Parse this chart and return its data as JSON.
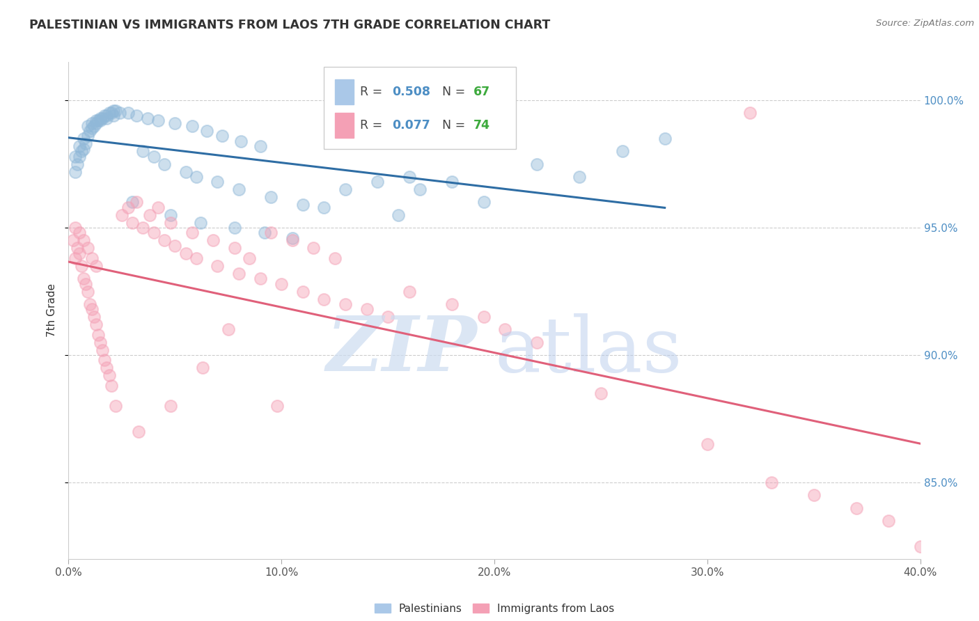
{
  "title": "PALESTINIAN VS IMMIGRANTS FROM LAOS 7TH GRADE CORRELATION CHART",
  "source": "Source: ZipAtlas.com",
  "ylabel": "7th Grade",
  "xlim": [
    0.0,
    40.0
  ],
  "ylim": [
    82.0,
    101.5
  ],
  "blue_R": 0.508,
  "blue_N": 67,
  "pink_R": 0.077,
  "pink_N": 74,
  "blue_color": "#90b8d8",
  "blue_line_color": "#2e6da4",
  "pink_color": "#f4a0b5",
  "pink_line_color": "#e0607a",
  "legend_R_color": "#4d8ec4",
  "legend_N_color": "#3daa3d",
  "watermark_color_zip": "#d0dff0",
  "watermark_color_atlas": "#b8ccec",
  "background_color": "#ffffff",
  "blue_scatter_x": [
    0.3,
    0.5,
    0.7,
    0.9,
    1.1,
    1.3,
    1.5,
    1.7,
    1.9,
    2.1,
    0.4,
    0.6,
    0.8,
    1.0,
    1.2,
    1.4,
    1.6,
    1.8,
    2.0,
    2.2,
    0.3,
    0.5,
    0.7,
    0.9,
    1.1,
    1.3,
    1.5,
    1.8,
    2.1,
    2.4,
    2.8,
    3.2,
    3.7,
    4.2,
    5.0,
    5.8,
    6.5,
    7.2,
    8.1,
    9.0,
    3.5,
    4.0,
    4.5,
    5.5,
    6.0,
    7.0,
    8.0,
    9.5,
    11.0,
    13.0,
    14.5,
    16.0,
    3.0,
    4.8,
    6.2,
    7.8,
    9.2,
    10.5,
    12.0,
    16.5,
    18.0,
    22.0,
    26.0,
    28.0,
    15.5,
    19.5,
    24.0
  ],
  "blue_scatter_y": [
    97.8,
    98.2,
    98.5,
    99.0,
    99.1,
    99.2,
    99.3,
    99.4,
    99.5,
    99.6,
    97.5,
    98.0,
    98.3,
    98.8,
    99.0,
    99.2,
    99.3,
    99.4,
    99.5,
    99.6,
    97.2,
    97.8,
    98.1,
    98.6,
    98.9,
    99.1,
    99.2,
    99.3,
    99.4,
    99.5,
    99.5,
    99.4,
    99.3,
    99.2,
    99.1,
    99.0,
    98.8,
    98.6,
    98.4,
    98.2,
    98.0,
    97.8,
    97.5,
    97.2,
    97.0,
    96.8,
    96.5,
    96.2,
    95.9,
    96.5,
    96.8,
    97.0,
    96.0,
    95.5,
    95.2,
    95.0,
    94.8,
    94.6,
    95.8,
    96.5,
    96.8,
    97.5,
    98.0,
    98.5,
    95.5,
    96.0,
    97.0
  ],
  "pink_scatter_x": [
    0.2,
    0.3,
    0.4,
    0.5,
    0.6,
    0.7,
    0.8,
    0.9,
    1.0,
    1.1,
    1.2,
    1.3,
    1.4,
    1.5,
    1.6,
    1.7,
    1.8,
    1.9,
    2.0,
    2.2,
    0.3,
    0.5,
    0.7,
    0.9,
    1.1,
    1.3,
    2.5,
    3.0,
    3.5,
    4.0,
    4.5,
    5.0,
    5.5,
    6.0,
    7.0,
    8.0,
    9.0,
    10.0,
    11.0,
    12.0,
    13.0,
    14.0,
    15.0,
    2.8,
    3.8,
    4.8,
    5.8,
    6.8,
    7.8,
    8.5,
    3.2,
    4.2,
    9.5,
    10.5,
    11.5,
    12.5,
    16.0,
    18.0,
    19.5,
    20.5,
    22.0,
    25.0,
    30.0,
    33.0,
    35.0,
    37.0,
    38.5,
    40.0,
    3.3,
    4.8,
    6.3,
    7.5,
    9.8,
    32.0
  ],
  "pink_scatter_y": [
    94.5,
    93.8,
    94.2,
    94.0,
    93.5,
    93.0,
    92.8,
    92.5,
    92.0,
    91.8,
    91.5,
    91.2,
    90.8,
    90.5,
    90.2,
    89.8,
    89.5,
    89.2,
    88.8,
    88.0,
    95.0,
    94.8,
    94.5,
    94.2,
    93.8,
    93.5,
    95.5,
    95.2,
    95.0,
    94.8,
    94.5,
    94.3,
    94.0,
    93.8,
    93.5,
    93.2,
    93.0,
    92.8,
    92.5,
    92.2,
    92.0,
    91.8,
    91.5,
    95.8,
    95.5,
    95.2,
    94.8,
    94.5,
    94.2,
    93.8,
    96.0,
    95.8,
    94.8,
    94.5,
    94.2,
    93.8,
    92.5,
    92.0,
    91.5,
    91.0,
    90.5,
    88.5,
    86.5,
    85.0,
    84.5,
    84.0,
    83.5,
    82.5,
    87.0,
    88.0,
    89.5,
    91.0,
    88.0,
    99.5
  ]
}
